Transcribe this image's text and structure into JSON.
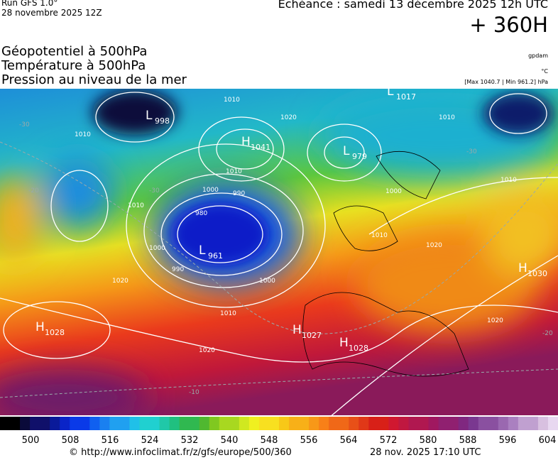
{
  "header": {
    "run": "Run GFS 1.0°",
    "run_date": "28 novembre 2025 12Z",
    "valid": "Echéance : samedi 13 décembre 2025 12h UTC",
    "lead": "+ 360H"
  },
  "titles": [
    "Géopotentiel à 500hPa",
    "Température à 500hPa",
    "Pression au niveau de la mer"
  ],
  "units": [
    "gpdam",
    "°C",
    "[Max 1040.7 | Min 961.2] hPa"
  ],
  "pressure_centers": [
    {
      "type": "L",
      "value": "998"
    },
    {
      "type": "H",
      "value": "1041"
    },
    {
      "type": "L",
      "value": "979"
    },
    {
      "type": "L",
      "value": "961"
    },
    {
      "type": "H",
      "value": "1028"
    },
    {
      "type": "H",
      "value": "1027"
    },
    {
      "type": "H",
      "value": "1028"
    },
    {
      "type": "H",
      "value": "1030"
    },
    {
      "type": "L",
      "value": "1017"
    }
  ],
  "isobar_labels": [
    "1010",
    "1020",
    "1010",
    "1010",
    "1010",
    "1000",
    "990",
    "980",
    "1000",
    "990",
    "1000",
    "1010",
    "1020",
    "1020",
    "1010",
    "1000",
    "1010",
    "1010",
    "1020",
    "1020"
  ],
  "isotherm_labels": [
    "-30",
    "-20",
    "-30",
    "-10",
    "-30",
    "-20"
  ],
  "colorbar": {
    "ticks": [
      500,
      508,
      516,
      524,
      532,
      540,
      548,
      556,
      564,
      572,
      580,
      588,
      596,
      604
    ]
  },
  "footer": {
    "url": "© http://www.infoclimat.fr/z/gfs/europe/500/360",
    "timestamp": "28 nov. 2025 17:10 UTC"
  }
}
